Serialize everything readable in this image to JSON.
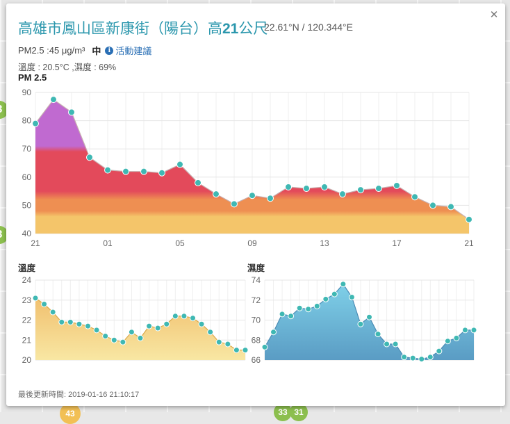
{
  "popup": {
    "title_prefix": "高雄市鳳山區新康街（陽台）高",
    "height": "21",
    "title_suffix": "公尺",
    "coords": "22.61°N / 120.344°E",
    "pm_text": "PM2.5 :45 μg/m³",
    "pm_level": "中",
    "advice_label": "活動建議",
    "info_icon": "info-icon",
    "weather_text": "溫度 : 20.5°C ,濕度 : 69%",
    "pm_chart_label": "PM 2.5",
    "temp_chart_label": "溫度",
    "hum_chart_label": "濕度",
    "updated_text": "最後更新時間: 2019-01-16 21:10:17",
    "close_icon": "close-icon"
  },
  "map_markers": [
    "3",
    "3",
    "43",
    "33",
    "31"
  ],
  "chart_data": [
    {
      "type": "area",
      "title": "PM 2.5",
      "x": [
        0,
        1,
        2,
        3,
        4,
        5,
        6,
        7,
        8,
        9,
        10,
        11,
        12,
        13,
        14,
        15,
        16,
        17,
        18,
        19,
        20,
        21,
        22,
        23,
        24
      ],
      "x_tick_labels": [
        "21",
        "01",
        "05",
        "09",
        "13",
        "17",
        "21"
      ],
      "x_tick_positions": [
        0,
        4,
        8,
        12,
        16,
        20,
        24
      ],
      "values": [
        79,
        87.5,
        83,
        67,
        62.5,
        62,
        62,
        61.5,
        64.5,
        58,
        54,
        50.5,
        53.5,
        52.5,
        56.5,
        56,
        56.5,
        54,
        55.5,
        56,
        57,
        53,
        50,
        49.5,
        45
      ],
      "ylim": [
        40,
        90
      ],
      "y_ticks": [
        40,
        50,
        60,
        70,
        80,
        90
      ],
      "colors": {
        "line": "#d4c4c4",
        "point": "#3fb8b3",
        "band_high": "#c06ad0",
        "band_mid": "#e34a5b",
        "band_low": "#ee8f52",
        "band_base": "#f4c56a"
      }
    },
    {
      "type": "area",
      "title": "溫度",
      "x": [
        0,
        1,
        2,
        3,
        4,
        5,
        6,
        7,
        8,
        9,
        10,
        11,
        12,
        13,
        14,
        15,
        16,
        17,
        18,
        19,
        20,
        21,
        22,
        23,
        24
      ],
      "values": [
        23.1,
        22.8,
        22.4,
        21.9,
        21.9,
        21.8,
        21.7,
        21.5,
        21.2,
        21.0,
        20.9,
        21.4,
        21.1,
        21.7,
        21.6,
        21.8,
        22.2,
        22.2,
        22.1,
        21.8,
        21.4,
        20.9,
        20.8,
        20.5,
        20.5
      ],
      "ylim": [
        20,
        24
      ],
      "y_ticks": [
        20,
        21,
        22,
        23,
        24
      ],
      "colors": {
        "fill_top": "#f1c06f",
        "fill_bottom": "#f8e7a3",
        "point": "#3fb8b3"
      }
    },
    {
      "type": "area",
      "title": "濕度",
      "x": [
        0,
        1,
        2,
        3,
        4,
        5,
        6,
        7,
        8,
        9,
        10,
        11,
        12,
        13,
        14,
        15,
        16,
        17,
        18,
        19,
        20,
        21,
        22,
        23,
        24
      ],
      "values": [
        67.3,
        68.8,
        70.6,
        70.4,
        71.2,
        71.1,
        71.4,
        72.1,
        72.6,
        73.6,
        72.3,
        69.6,
        70.3,
        68.6,
        67.6,
        67.6,
        66.3,
        66.2,
        66.1,
        66.3,
        66.9,
        67.9,
        68.2,
        69.0,
        69.0
      ],
      "ylim": [
        66,
        74
      ],
      "y_ticks": [
        66,
        68,
        70,
        72,
        74
      ],
      "colors": {
        "fill_top": "#7fd0e8",
        "fill_bottom": "#5a9cc4",
        "point": "#3fb8b3"
      }
    }
  ]
}
